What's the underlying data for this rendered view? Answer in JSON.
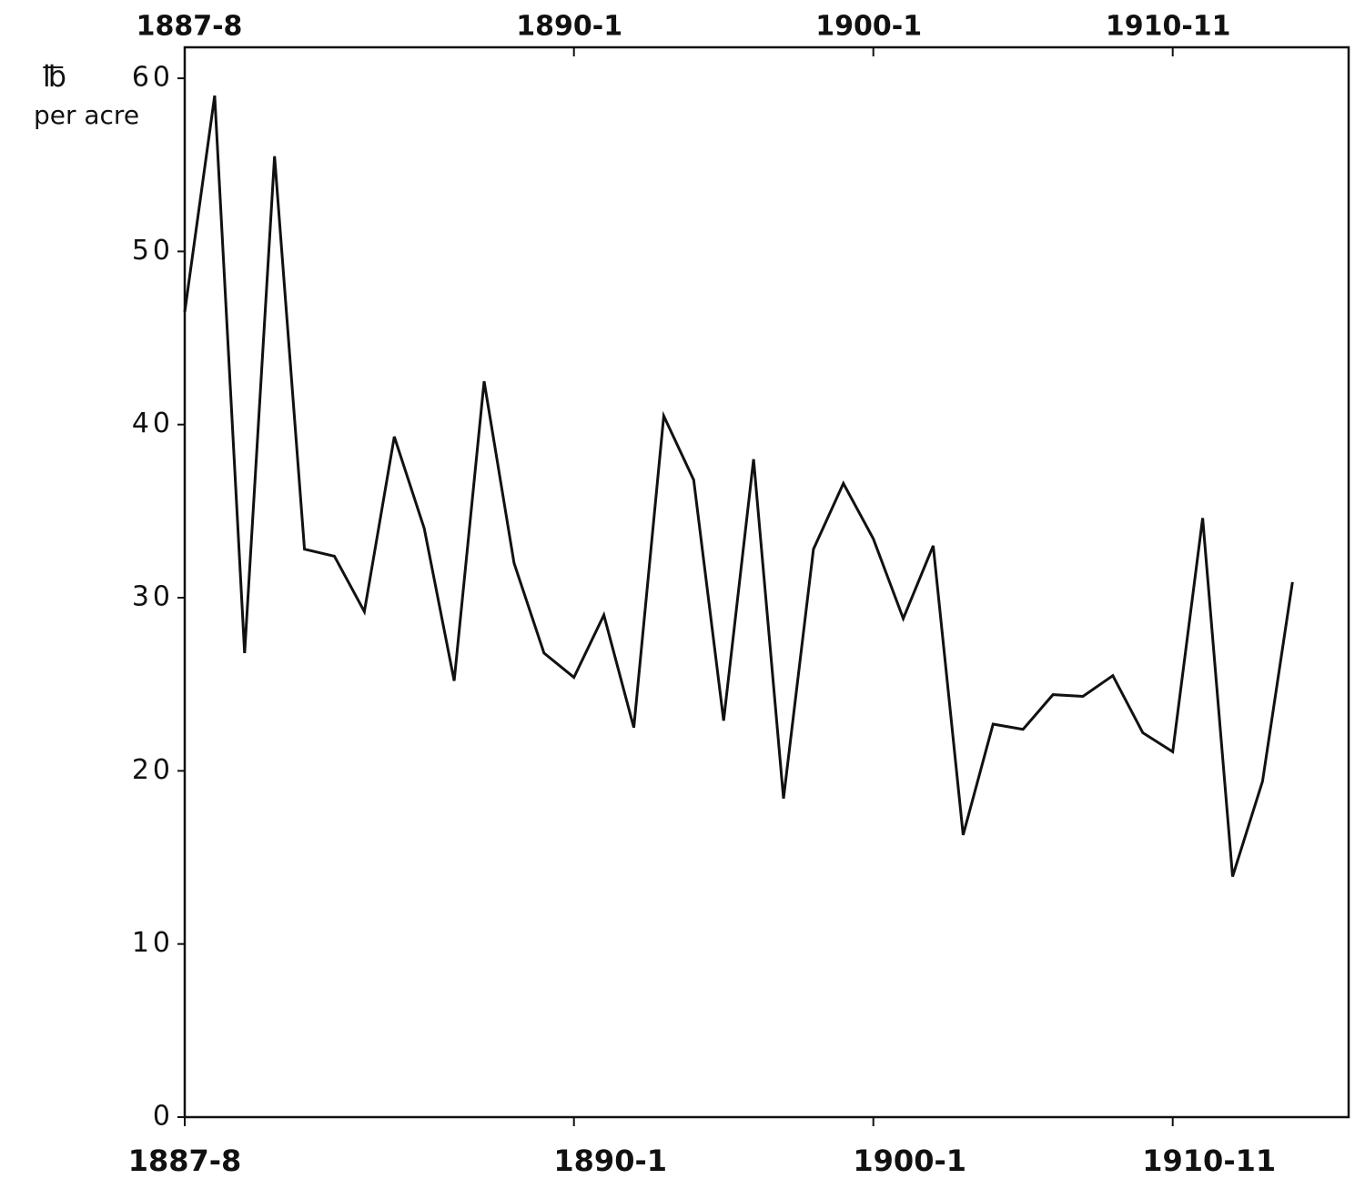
{
  "chart_data": {
    "type": "line",
    "ylabel_unit": "℔",
    "ylabel": "per acre",
    "categories": [
      "1887-8",
      null,
      null,
      null,
      null,
      null,
      null,
      null,
      null,
      null,
      null,
      null,
      null,
      "1890-1",
      null,
      null,
      null,
      null,
      null,
      null,
      null,
      null,
      null,
      "1900-1",
      null,
      null,
      null,
      null,
      null,
      null,
      null,
      null,
      null,
      "1910-11",
      null,
      null,
      null,
      null
    ],
    "values": [
      46.5,
      59,
      26.8,
      55.5,
      32.8,
      32.4,
      29.2,
      39.3,
      34,
      25.2,
      42.5,
      32,
      26.8,
      25.4,
      29,
      22.5,
      40.5,
      36.8,
      22.9,
      38,
      18.4,
      32.8,
      36.6,
      33.4,
      28.8,
      33,
      16.3,
      22.7,
      22.4,
      24.4,
      24.3,
      25.5,
      22.2,
      21.1,
      34.6,
      13.9,
      19.4,
      30.9
    ],
    "color": "#111111",
    "ylim": [
      0,
      62
    ],
    "yticks": [
      0,
      10,
      20,
      30,
      40,
      50,
      60
    ]
  }
}
